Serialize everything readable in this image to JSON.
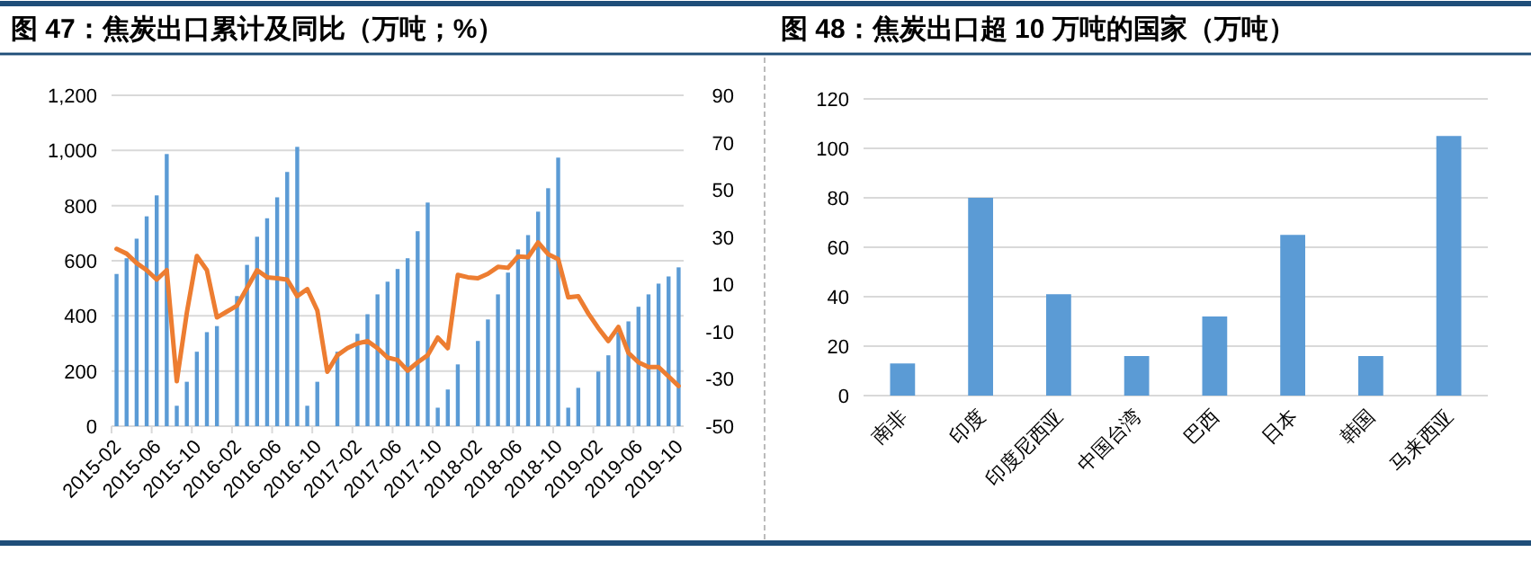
{
  "chart_data": [
    {
      "type": "bar",
      "title": "图 47：焦炭出口累计及同比（万吨；%）",
      "categories": [
        "2015-02",
        null,
        null,
        null,
        "2015-06",
        null,
        null,
        null,
        "2015-10",
        null,
        null,
        null,
        "2016-02",
        null,
        null,
        null,
        "2016-06",
        null,
        null,
        null,
        "2016-10",
        null,
        null,
        null,
        "2017-02",
        null,
        null,
        null,
        "2017-06",
        null,
        null,
        null,
        "2017-10",
        null,
        null,
        null,
        "2018-02",
        null,
        null,
        null,
        "2018-06",
        null,
        null,
        null,
        "2018-10",
        null,
        null,
        null,
        "2019-02",
        null,
        null,
        null,
        "2019-06",
        null,
        null,
        null,
        "2019-10"
      ],
      "series": [
        {
          "type": "bar",
          "color": "#5b9bd5",
          "values": [
            552,
            609,
            680,
            761,
            837,
            987,
            74,
            161,
            270,
            341,
            363,
            null,
            472,
            585,
            687,
            754,
            830,
            922,
            1013,
            74,
            161,
            null,
            270,
            null,
            335,
            406,
            478,
            524,
            570,
            609,
            707,
            811,
            67,
            133,
            224,
            null,
            309,
            387,
            478,
            557,
            641,
            693,
            778,
            863,
            974,
            67,
            139,
            null,
            198,
            257,
            341,
            380,
            433,
            478,
            517,
            543,
            576
          ]
        },
        {
          "type": "line",
          "axis": "y2",
          "color": "#ed7d31",
          "values": [
            25,
            23,
            19,
            16,
            12,
            16,
            -31,
            -2,
            22,
            16,
            -4,
            -1.5,
            1,
            8.5,
            16,
            13,
            12.6,
            12,
            5,
            8,
            -1,
            -27,
            -20,
            -17,
            -15,
            -14,
            -17,
            -21,
            -22,
            -26.5,
            -23,
            -20,
            -12.5,
            -17,
            14,
            13,
            12.6,
            14.5,
            17.4,
            17,
            21.8,
            21.5,
            27.7,
            22.8,
            20.7,
            4.5,
            5,
            -2.3,
            -8.5,
            -14,
            -8,
            -19,
            -23,
            -25,
            -25,
            -29,
            -33
          ]
        }
      ],
      "ylim": [
        0,
        1200
      ],
      "yticks": [
        0,
        200,
        400,
        600,
        800,
        {
          "value": 1000,
          "label": "1,000"
        },
        {
          "value": 1200,
          "label": "1,200"
        }
      ],
      "y2lim": [
        -50,
        90
      ],
      "y2ticks": [
        -50,
        -30,
        -10,
        10,
        30,
        50,
        70,
        90
      ],
      "grid": "y"
    },
    {
      "type": "bar",
      "title": "图 48：焦炭出口超 10 万吨的国家（万吨）",
      "categories": [
        "南非",
        "印度",
        "印度尼西亚",
        "中国台湾",
        "巴西",
        "日本",
        "韩国",
        "马来西亚"
      ],
      "values": [
        13,
        80,
        41,
        16,
        32,
        65,
        16,
        105
      ],
      "color": "#5b9bd5",
      "ylim": [
        0,
        120
      ],
      "yticks": [
        0,
        20,
        40,
        60,
        80,
        100,
        120
      ],
      "grid": "y"
    }
  ]
}
